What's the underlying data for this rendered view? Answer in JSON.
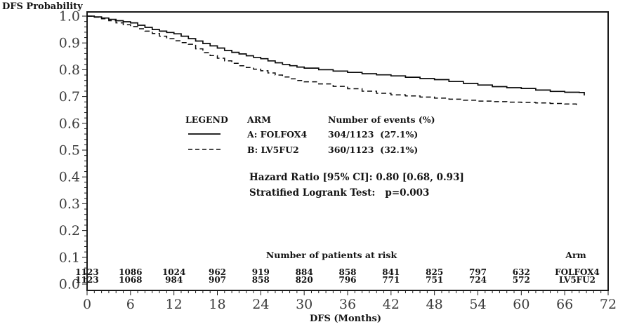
{
  "axes": {
    "y_label": "DFS Probability",
    "x_label": "DFS (Months)",
    "x_ticks": [
      0,
      6,
      12,
      18,
      24,
      30,
      36,
      42,
      48,
      54,
      60,
      66,
      72
    ],
    "y_ticks": [
      "1.0",
      "0.9",
      "0.8",
      "0.7",
      "0.6",
      "0.5",
      "0.4",
      "0.3",
      "0.2",
      "0.1",
      "0.0"
    ]
  },
  "legend": {
    "header_legend": "LEGEND",
    "header_arm": "ARM",
    "header_events": "Number of events (%)",
    "rows": [
      {
        "arm": "A: FOLFOX4",
        "events": "304/1123  (27.1%)",
        "style": "solid"
      },
      {
        "arm": "B: LV5FU2",
        "events": "360/1123  (32.1%)",
        "style": "dashed"
      }
    ]
  },
  "stats": {
    "hazard_ratio": "Hazard Ratio [95% CI]: 0.80 [0.68, 0.93]",
    "logrank": "Stratified Logrank Test:   p=0.003"
  },
  "risk_table": {
    "title": "Number of patients at risk",
    "arm_header": "Arm",
    "columns_months": [
      0,
      6,
      12,
      18,
      24,
      30,
      36,
      42,
      48,
      54,
      60
    ],
    "rows": [
      {
        "arm": "FOLFOX4",
        "values": [
          "1123",
          "1086",
          "1024",
          "962",
          "919",
          "884",
          "858",
          "841",
          "825",
          "797",
          "632"
        ]
      },
      {
        "arm": "LV5FU2",
        "values": [
          "1123",
          "1068",
          "984",
          "907",
          "858",
          "820",
          "796",
          "771",
          "751",
          "724",
          "572"
        ]
      }
    ]
  },
  "colors": {
    "curve": "#0a0a0a",
    "frame": "#1a1a1a",
    "tick_text": "#3c3c3c",
    "text": "#141414"
  },
  "chart_data": {
    "type": "line",
    "subtype": "kaplan-meier-step",
    "title": "",
    "xlabel": "DFS (Months)",
    "ylabel": "DFS Probability",
    "xlim": [
      0,
      72
    ],
    "ylim": [
      0.0,
      1.0
    ],
    "x_major_tick_step": 6,
    "x_minor_tick_step": 1,
    "y_major_tick_step": 0.1,
    "y_minor_tick_step": 0.02,
    "grid": false,
    "legend_position": "inside-upper-middle",
    "series": [
      {
        "name": "A: FOLFOX4",
        "line_style": "solid",
        "events": "304/1123 (27.1%)",
        "points": [
          [
            0,
            1.0
          ],
          [
            1,
            0.997
          ],
          [
            2,
            0.993
          ],
          [
            3,
            0.988
          ],
          [
            4,
            0.983
          ],
          [
            5,
            0.979
          ],
          [
            6,
            0.975
          ],
          [
            7,
            0.966
          ],
          [
            8,
            0.958
          ],
          [
            9,
            0.95
          ],
          [
            10,
            0.944
          ],
          [
            11,
            0.939
          ],
          [
            12,
            0.934
          ],
          [
            13,
            0.925
          ],
          [
            14,
            0.916
          ],
          [
            15,
            0.907
          ],
          [
            16,
            0.898
          ],
          [
            17,
            0.889
          ],
          [
            18,
            0.881
          ],
          [
            19,
            0.872
          ],
          [
            20,
            0.865
          ],
          [
            21,
            0.859
          ],
          [
            22,
            0.852
          ],
          [
            23,
            0.846
          ],
          [
            24,
            0.841
          ],
          [
            25,
            0.833
          ],
          [
            26,
            0.826
          ],
          [
            27,
            0.82
          ],
          [
            28,
            0.815
          ],
          [
            29,
            0.81
          ],
          [
            30,
            0.806
          ],
          [
            32,
            0.8
          ],
          [
            34,
            0.795
          ],
          [
            36,
            0.79
          ],
          [
            38,
            0.785
          ],
          [
            40,
            0.781
          ],
          [
            42,
            0.777
          ],
          [
            44,
            0.772
          ],
          [
            46,
            0.767
          ],
          [
            48,
            0.763
          ],
          [
            50,
            0.756
          ],
          [
            52,
            0.749
          ],
          [
            54,
            0.743
          ],
          [
            56,
            0.737
          ],
          [
            58,
            0.733
          ],
          [
            60,
            0.73
          ],
          [
            62,
            0.724
          ],
          [
            64,
            0.719
          ],
          [
            66,
            0.716
          ],
          [
            68,
            0.715
          ],
          [
            68.7,
            0.704
          ]
        ]
      },
      {
        "name": "B: LV5FU2",
        "line_style": "dashed",
        "events": "360/1123 (32.1%)",
        "points": [
          [
            0,
            1.0
          ],
          [
            1,
            0.996
          ],
          [
            2,
            0.99
          ],
          [
            3,
            0.983
          ],
          [
            4,
            0.975
          ],
          [
            5,
            0.968
          ],
          [
            6,
            0.961
          ],
          [
            7,
            0.953
          ],
          [
            8,
            0.944
          ],
          [
            9,
            0.935
          ],
          [
            10,
            0.925
          ],
          [
            11,
            0.916
          ],
          [
            12,
            0.908
          ],
          [
            13,
            0.901
          ],
          [
            14,
            0.895
          ],
          [
            15,
            0.878
          ],
          [
            16,
            0.864
          ],
          [
            17,
            0.853
          ],
          [
            18,
            0.843
          ],
          [
            19,
            0.833
          ],
          [
            20,
            0.824
          ],
          [
            21,
            0.815
          ],
          [
            22,
            0.808
          ],
          [
            23,
            0.802
          ],
          [
            24,
            0.796
          ],
          [
            25,
            0.788
          ],
          [
            26,
            0.78
          ],
          [
            27,
            0.773
          ],
          [
            28,
            0.766
          ],
          [
            29,
            0.76
          ],
          [
            30,
            0.755
          ],
          [
            32,
            0.747
          ],
          [
            34,
            0.738
          ],
          [
            36,
            0.729
          ],
          [
            38,
            0.72
          ],
          [
            40,
            0.712
          ],
          [
            42,
            0.706
          ],
          [
            44,
            0.702
          ],
          [
            46,
            0.698
          ],
          [
            48,
            0.694
          ],
          [
            50,
            0.69
          ],
          [
            52,
            0.686
          ],
          [
            54,
            0.683
          ],
          [
            56,
            0.681
          ],
          [
            58,
            0.679
          ],
          [
            60,
            0.678
          ],
          [
            62,
            0.676
          ],
          [
            64,
            0.674
          ],
          [
            66,
            0.672
          ],
          [
            67.6,
            0.662
          ]
        ]
      }
    ],
    "annotations": [
      "Hazard Ratio [95% CI]: 0.80 [0.68, 0.93]",
      "Stratified Logrank Test: p=0.003"
    ],
    "at_risk": {
      "months": [
        0,
        6,
        12,
        18,
        24,
        30,
        36,
        42,
        48,
        54,
        60
      ],
      "FOLFOX4": [
        1123,
        1086,
        1024,
        962,
        919,
        884,
        858,
        841,
        825,
        797,
        632
      ],
      "LV5FU2": [
        1123,
        1068,
        984,
        907,
        858,
        820,
        796,
        771,
        751,
        724,
        572
      ]
    }
  }
}
